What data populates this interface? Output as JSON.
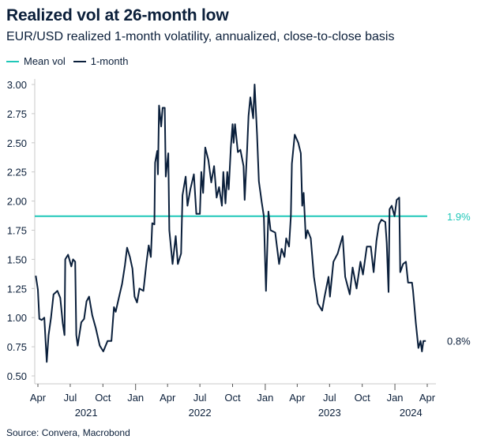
{
  "title": "Realized vol at 26-month low",
  "subtitle": "EUR/USD realized 1-month volatility, annualized, close-to-close basis",
  "source": "Source: Convera, Macrobond",
  "colors": {
    "line": "#0a1f3b",
    "mean": "#1fc7b8",
    "axis": "#c8c8c8"
  },
  "chart_data": {
    "type": "line",
    "title": "Realized vol at 26-month low",
    "ylim": [
      0.5,
      3.0
    ],
    "yticks": [
      "0.50",
      "0.75",
      "1.00",
      "1.25",
      "1.50",
      "1.75",
      "2.00",
      "2.25",
      "2.50",
      "2.75",
      "3.00"
    ],
    "xlim": [
      "2021-04-01",
      "2024-04-01"
    ],
    "xticks": [
      {
        "date": "2021-04-01",
        "label": "Apr"
      },
      {
        "date": "2021-07-01",
        "label": "Jul"
      },
      {
        "date": "2021-10-01",
        "label": "Oct"
      },
      {
        "date": "2022-01-01",
        "label": "Jan"
      },
      {
        "date": "2022-04-01",
        "label": "Apr"
      },
      {
        "date": "2022-07-01",
        "label": "Jul"
      },
      {
        "date": "2022-10-01",
        "label": "Oct"
      },
      {
        "date": "2023-01-01",
        "label": "Jan"
      },
      {
        "date": "2023-04-01",
        "label": "Apr"
      },
      {
        "date": "2023-07-01",
        "label": "Jul"
      },
      {
        "date": "2023-10-01",
        "label": "Oct"
      },
      {
        "date": "2024-01-01",
        "label": "Jan"
      },
      {
        "date": "2024-04-01",
        "label": "Apr"
      }
    ],
    "years": [
      {
        "label": "2021",
        "center": "2021-08-15"
      },
      {
        "label": "2022",
        "center": "2022-07-01"
      },
      {
        "label": "2023",
        "center": "2023-07-01"
      },
      {
        "label": "2024",
        "center": "2024-02-15"
      }
    ],
    "legend": "top-left",
    "grid": false,
    "series": [
      {
        "name": "Mean vol",
        "type": "hline",
        "value": 1.87,
        "end_label": "1.9%"
      },
      {
        "name": "1-month",
        "end_label": "0.8%",
        "x": [
          "2021-03-26",
          "2021-04-01",
          "2021-04-05",
          "2021-04-12",
          "2021-04-19",
          "2021-04-26",
          "2021-05-01",
          "2021-05-08",
          "2021-05-15",
          "2021-05-26",
          "2021-06-03",
          "2021-06-10",
          "2021-06-15",
          "2021-06-17",
          "2021-06-25",
          "2021-07-04",
          "2021-07-09",
          "2021-07-15",
          "2021-07-18",
          "2021-07-22",
          "2021-08-01",
          "2021-08-09",
          "2021-08-16",
          "2021-08-23",
          "2021-09-01",
          "2021-09-11",
          "2021-09-22",
          "2021-10-02",
          "2021-10-14",
          "2021-10-25",
          "2021-11-01",
          "2021-11-06",
          "2021-11-17",
          "2021-11-24",
          "2021-12-02",
          "2021-12-08",
          "2021-12-16",
          "2021-12-23",
          "2021-12-29",
          "2022-01-05",
          "2022-01-12",
          "2022-01-23",
          "2022-02-01",
          "2022-02-07",
          "2022-02-13",
          "2022-02-17",
          "2022-02-23",
          "2022-02-25",
          "2022-03-03",
          "2022-03-05",
          "2022-03-08",
          "2022-03-14",
          "2022-03-18",
          "2022-03-24",
          "2022-03-27",
          "2022-04-03",
          "2022-04-06",
          "2022-04-15",
          "2022-04-24",
          "2022-04-30",
          "2022-05-09",
          "2022-05-13",
          "2022-05-22",
          "2022-05-27",
          "2022-06-04",
          "2022-06-14",
          "2022-06-21",
          "2022-07-01",
          "2022-07-05",
          "2022-07-10",
          "2022-07-16",
          "2022-07-25",
          "2022-08-02",
          "2022-08-10",
          "2022-08-17",
          "2022-08-24",
          "2022-09-01",
          "2022-09-05",
          "2022-09-11",
          "2022-09-16",
          "2022-09-20",
          "2022-09-26",
          "2022-10-01",
          "2022-10-04",
          "2022-10-08",
          "2022-10-16",
          "2022-10-23",
          "2022-11-01",
          "2022-11-04",
          "2022-11-11",
          "2022-11-15",
          "2022-11-20",
          "2022-11-28",
          "2022-12-02",
          "2022-12-09",
          "2022-12-14",
          "2022-12-22",
          "2022-12-28",
          "2023-01-03",
          "2023-01-10",
          "2023-01-16",
          "2023-01-29",
          "2023-02-09",
          "2023-02-16",
          "2023-02-24",
          "2023-03-01",
          "2023-03-09",
          "2023-03-14",
          "2023-03-17",
          "2023-03-25",
          "2023-04-04",
          "2023-04-11",
          "2023-04-15",
          "2023-04-19",
          "2023-04-25",
          "2023-04-30",
          "2023-05-09",
          "2023-05-18",
          "2023-05-29",
          "2023-06-10",
          "2023-06-17",
          "2023-06-28",
          "2023-07-02",
          "2023-07-12",
          "2023-07-24",
          "2023-08-07",
          "2023-08-14",
          "2023-08-27",
          "2023-09-04",
          "2023-09-15",
          "2023-09-26",
          "2023-10-03",
          "2023-10-14",
          "2023-10-25",
          "2023-11-02",
          "2023-11-10",
          "2023-11-17",
          "2023-11-24",
          "2023-12-05",
          "2023-12-09",
          "2023-12-14",
          "2023-12-17",
          "2023-12-23",
          "2023-12-31",
          "2024-01-06",
          "2024-01-13",
          "2024-01-16",
          "2024-01-24",
          "2024-02-01",
          "2024-02-07",
          "2024-02-18",
          "2024-02-21",
          "2024-02-29",
          "2024-03-07",
          "2024-03-13",
          "2024-03-17",
          "2024-03-21",
          "2024-03-28"
        ],
        "values": [
          1.36,
          1.24,
          0.99,
          0.98,
          1.0,
          0.62,
          0.85,
          1.0,
          1.2,
          1.23,
          1.17,
          0.95,
          0.85,
          1.5,
          1.54,
          1.44,
          1.5,
          1.48,
          0.85,
          0.76,
          0.96,
          0.99,
          1.14,
          1.18,
          1.02,
          0.91,
          0.76,
          0.71,
          0.8,
          0.8,
          1.09,
          1.05,
          1.2,
          1.29,
          1.45,
          1.6,
          1.52,
          1.42,
          1.18,
          1.13,
          1.25,
          1.23,
          1.48,
          1.62,
          1.52,
          1.81,
          1.8,
          2.33,
          2.43,
          2.23,
          2.82,
          2.64,
          2.8,
          2.8,
          2.21,
          2.41,
          1.75,
          1.46,
          1.7,
          1.46,
          1.55,
          2.05,
          2.21,
          1.96,
          2.1,
          2.23,
          1.89,
          1.89,
          2.25,
          2.07,
          2.46,
          2.35,
          2.16,
          2.3,
          2.03,
          2.12,
          1.96,
          2.25,
          1.98,
          2.25,
          2.1,
          2.46,
          2.66,
          2.5,
          2.66,
          2.42,
          2.44,
          2.3,
          2.01,
          2.44,
          2.73,
          2.89,
          2.71,
          3.0,
          2.57,
          2.17,
          1.99,
          1.87,
          1.23,
          1.91,
          1.75,
          1.73,
          1.46,
          1.59,
          1.52,
          1.68,
          1.61,
          1.87,
          2.32,
          2.57,
          2.5,
          2.41,
          1.96,
          2.07,
          1.68,
          1.75,
          1.68,
          1.35,
          1.12,
          1.06,
          1.18,
          1.35,
          1.18,
          1.48,
          1.55,
          1.7,
          1.35,
          1.2,
          1.43,
          1.25,
          1.48,
          1.37,
          1.61,
          1.61,
          1.39,
          1.66,
          1.8,
          1.84,
          1.82,
          1.64,
          1.22,
          1.93,
          1.96,
          1.87,
          2.01,
          2.03,
          1.39,
          1.46,
          1.48,
          1.3,
          1.3,
          1.23,
          0.95,
          0.74,
          0.8,
          0.71,
          0.8,
          0.8
        ]
      }
    ]
  }
}
